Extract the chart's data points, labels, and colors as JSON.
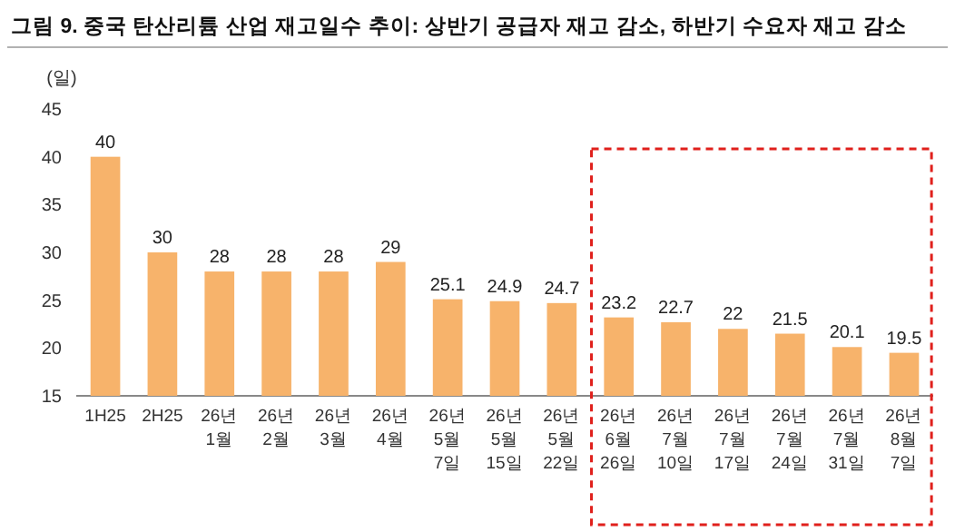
{
  "chart_data": {
    "type": "bar",
    "title": "그림 9. 중국 탄산리튬 산업 재고일수 추이: 상반기 공급자 재고 감소, 하반기 수요자 재고 감소",
    "ylabel": "(일)",
    "categories": [
      "1H25",
      "2H25",
      "26년\n1월",
      "26년\n2월",
      "26년\n3월",
      "26년\n4월",
      "26년\n5월\n7일",
      "26년\n5월\n15일",
      "26년\n5월\n22일",
      "26년\n6월\n26일",
      "26년\n7월\n10일",
      "26년\n7월\n17일",
      "26년\n7월\n24일",
      "26년\n7월\n31일",
      "26년\n8월\n7일"
    ],
    "values": [
      40,
      30,
      28,
      28,
      28,
      29,
      25.1,
      24.9,
      24.7,
      23.2,
      22.7,
      22,
      21.5,
      20.1,
      19.5
    ],
    "color": "#f7b36b",
    "ylim": [
      15,
      45
    ],
    "yticks": [
      15,
      20,
      25,
      30,
      35,
      40,
      45
    ],
    "data_labels": true
  }
}
